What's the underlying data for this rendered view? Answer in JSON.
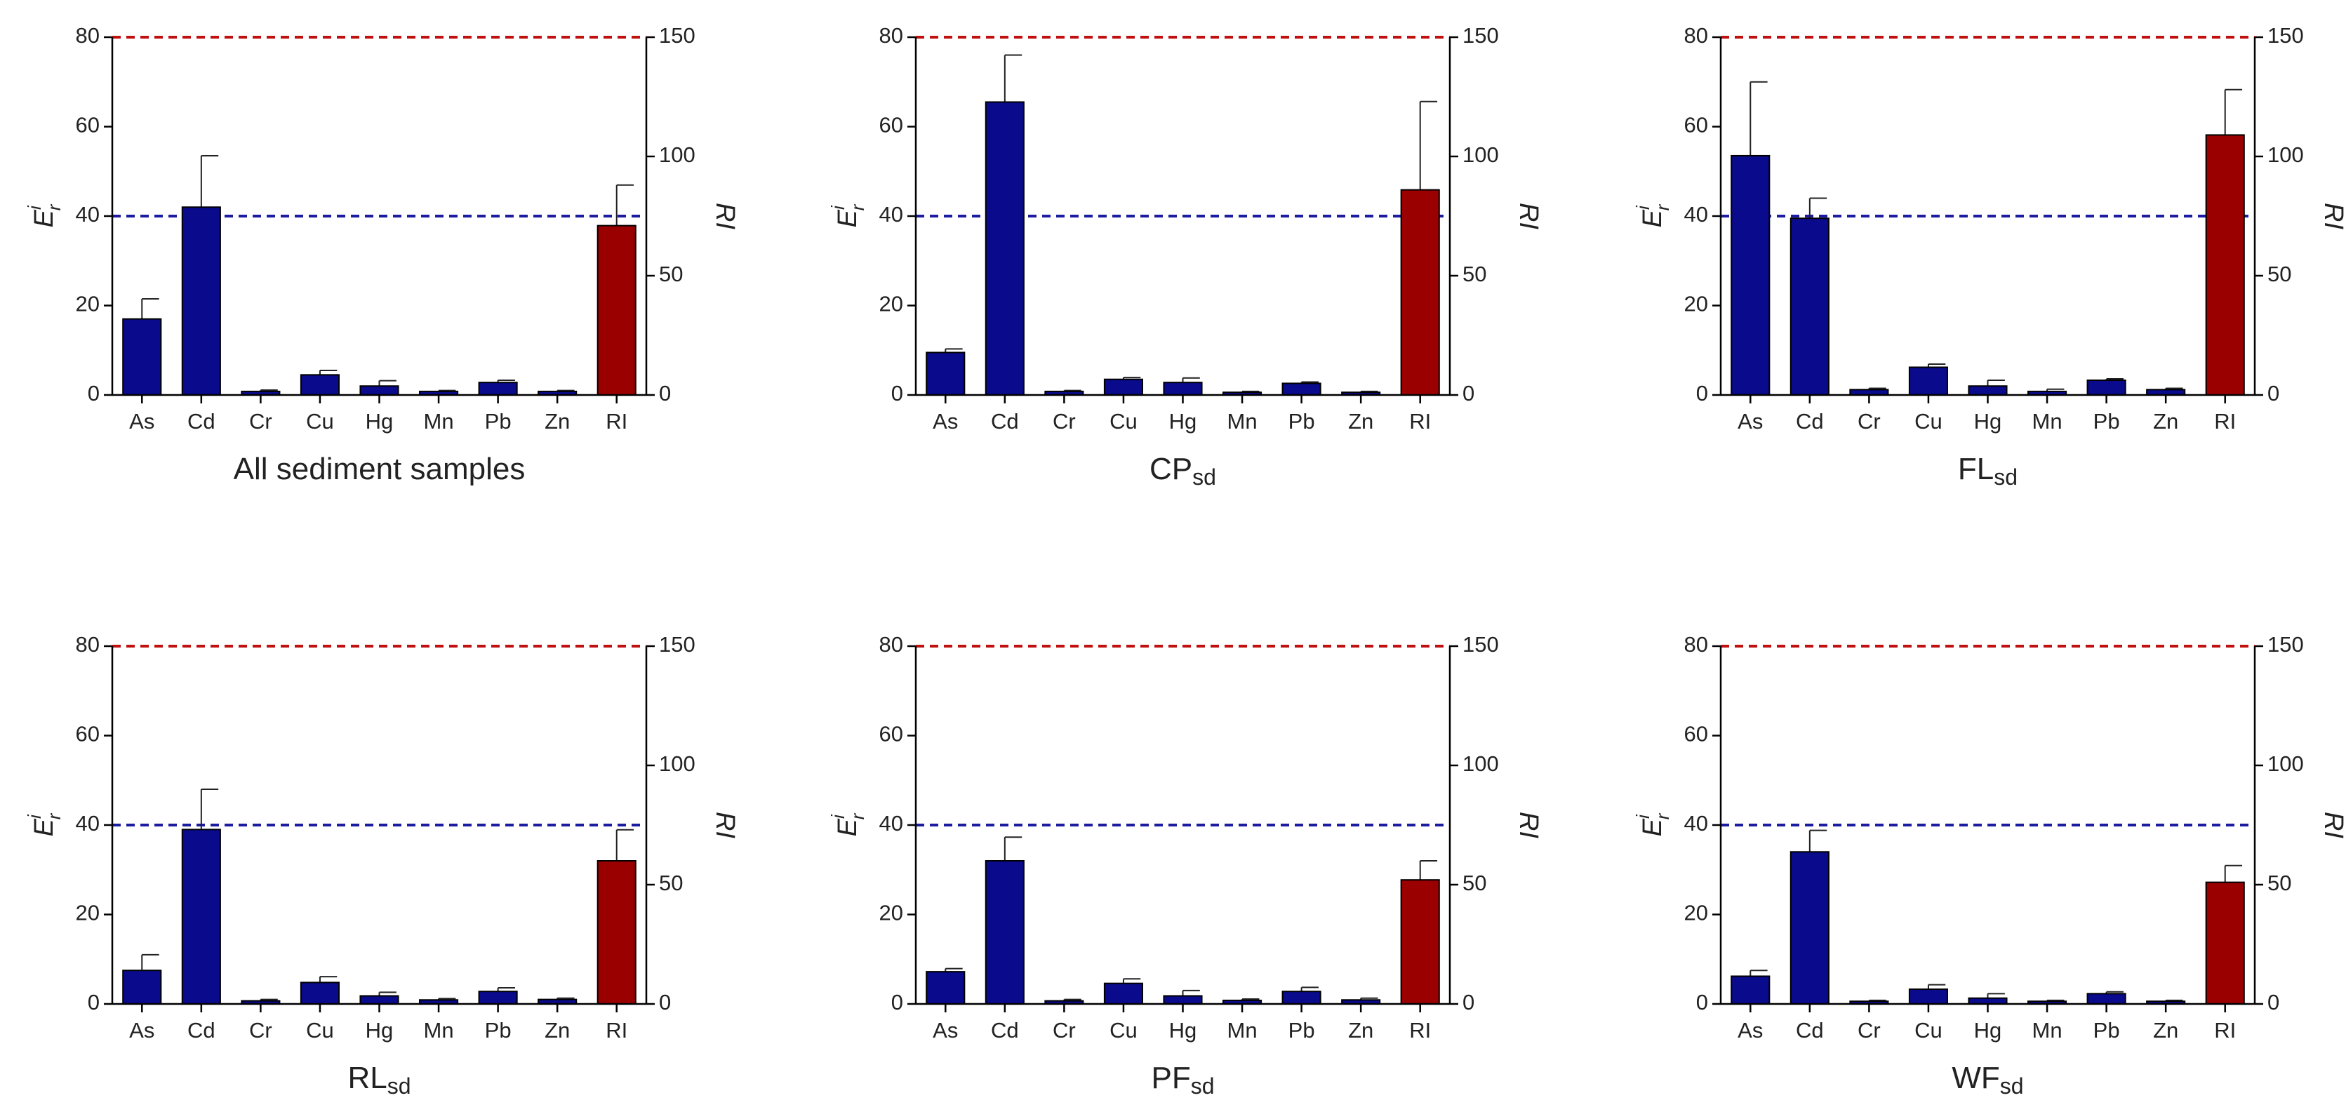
{
  "chart_data": [
    {
      "type": "bar",
      "title": "All sediment samples",
      "ylabel": {
        "base": "E",
        "sup": "i",
        "sub": "r"
      },
      "y2label": "RI",
      "categories": [
        "As",
        "Cd",
        "Cr",
        "Cu",
        "Hg",
        "Mn",
        "Pb",
        "Zn",
        "RI"
      ],
      "series": [
        {
          "color": "#0a0a8c",
          "values": [
            17,
            42,
            0.8,
            4.5,
            2,
            0.8,
            2.8,
            0.8,
            null
          ],
          "errors": [
            4.5,
            11.5,
            0.3,
            1,
            1.2,
            0.2,
            0.5,
            0.2,
            null
          ]
        },
        {
          "color": "#9b0000",
          "axis": "y2",
          "values": [
            null,
            null,
            null,
            null,
            null,
            null,
            null,
            null,
            71
          ],
          "errors": [
            null,
            null,
            null,
            null,
            null,
            null,
            null,
            null,
            17
          ]
        }
      ],
      "ylim": [
        0,
        80
      ],
      "yticks": [
        0,
        20,
        40,
        60,
        80
      ],
      "y2lim": [
        0,
        150
      ],
      "y2ticks": [
        0,
        50,
        100,
        150
      ],
      "hlines": [
        {
          "value": 40,
          "axis": "y",
          "color": "#1c1ca0"
        },
        {
          "value": 150,
          "axis": "y2",
          "color": "#c01010"
        }
      ]
    },
    {
      "type": "bar",
      "title": "CP",
      "title_sub": "sd",
      "ylabel": {
        "base": "E",
        "sup": "i",
        "sub": "r"
      },
      "y2label": "RI",
      "categories": [
        "As",
        "Cd",
        "Cr",
        "Cu",
        "Hg",
        "Mn",
        "Pb",
        "Zn",
        "RI"
      ],
      "series": [
        {
          "color": "#0a0a8c",
          "values": [
            9.5,
            65.5,
            0.8,
            3.5,
            2.8,
            0.6,
            2.6,
            0.6,
            null
          ],
          "errors": [
            0.8,
            10.5,
            0.2,
            0.4,
            1,
            0.2,
            0.3,
            0.2,
            null
          ]
        },
        {
          "color": "#9b0000",
          "axis": "y2",
          "values": [
            null,
            null,
            null,
            null,
            null,
            null,
            null,
            null,
            86
          ],
          "errors": [
            null,
            null,
            null,
            null,
            null,
            null,
            null,
            null,
            37
          ]
        }
      ],
      "ylim": [
        0,
        80
      ],
      "yticks": [
        0,
        20,
        40,
        60,
        80
      ],
      "y2lim": [
        0,
        150
      ],
      "y2ticks": [
        0,
        50,
        100,
        150
      ],
      "hlines": [
        {
          "value": 40,
          "axis": "y",
          "color": "#1c1ca0"
        },
        {
          "value": 150,
          "axis": "y2",
          "color": "#c01010"
        }
      ]
    },
    {
      "type": "bar",
      "title": "FL",
      "title_sub": "sd",
      "ylabel": {
        "base": "E",
        "sup": "i",
        "sub": "r"
      },
      "y2label": "RI",
      "categories": [
        "As",
        "Cd",
        "Cr",
        "Cu",
        "Hg",
        "Mn",
        "Pb",
        "Zn",
        "RI"
      ],
      "series": [
        {
          "color": "#0a0a8c",
          "values": [
            53.5,
            39.5,
            1.2,
            6.2,
            2,
            0.8,
            3.3,
            1.2,
            null
          ],
          "errors": [
            16.5,
            4.5,
            0.3,
            0.7,
            1.3,
            0.5,
            0.3,
            0.3,
            null
          ]
        },
        {
          "color": "#9b0000",
          "axis": "y2",
          "values": [
            null,
            null,
            null,
            null,
            null,
            null,
            null,
            null,
            109
          ],
          "errors": [
            null,
            null,
            null,
            null,
            null,
            null,
            null,
            null,
            19
          ]
        }
      ],
      "ylim": [
        0,
        80
      ],
      "yticks": [
        0,
        20,
        40,
        60,
        80
      ],
      "y2lim": [
        0,
        150
      ],
      "y2ticks": [
        0,
        50,
        100,
        150
      ],
      "hlines": [
        {
          "value": 40,
          "axis": "y",
          "color": "#1c1ca0"
        },
        {
          "value": 150,
          "axis": "y2",
          "color": "#c01010"
        }
      ]
    },
    {
      "type": "bar",
      "title": "RL",
      "title_sub": "sd",
      "ylabel": {
        "base": "E",
        "sup": "i",
        "sub": "r"
      },
      "y2label": "RI",
      "categories": [
        "As",
        "Cd",
        "Cr",
        "Cu",
        "Hg",
        "Mn",
        "Pb",
        "Zn",
        "RI"
      ],
      "series": [
        {
          "color": "#0a0a8c",
          "values": [
            7.5,
            39,
            0.7,
            4.8,
            1.8,
            0.9,
            2.8,
            1,
            null
          ],
          "errors": [
            3.5,
            9,
            0.3,
            1.3,
            0.8,
            0.3,
            0.8,
            0.3,
            null
          ]
        },
        {
          "color": "#9b0000",
          "axis": "y2",
          "values": [
            null,
            null,
            null,
            null,
            null,
            null,
            null,
            null,
            60
          ],
          "errors": [
            null,
            null,
            null,
            null,
            null,
            null,
            null,
            null,
            13
          ]
        }
      ],
      "ylim": [
        0,
        80
      ],
      "yticks": [
        0,
        20,
        40,
        60,
        80
      ],
      "y2lim": [
        0,
        150
      ],
      "y2ticks": [
        0,
        50,
        100,
        150
      ],
      "hlines": [
        {
          "value": 40,
          "axis": "y",
          "color": "#1c1ca0"
        },
        {
          "value": 150,
          "axis": "y2",
          "color": "#c01010"
        }
      ]
    },
    {
      "type": "bar",
      "title": "PF",
      "title_sub": "sd",
      "ylabel": {
        "base": "E",
        "sup": "i",
        "sub": "r"
      },
      "y2label": "RI",
      "categories": [
        "As",
        "Cd",
        "Cr",
        "Cu",
        "Hg",
        "Mn",
        "Pb",
        "Zn",
        "RI"
      ],
      "series": [
        {
          "color": "#0a0a8c",
          "values": [
            7.2,
            32,
            0.7,
            4.6,
            1.8,
            0.8,
            2.8,
            0.9,
            null
          ],
          "errors": [
            0.7,
            5.3,
            0.3,
            1,
            1.2,
            0.3,
            0.9,
            0.4,
            null
          ]
        },
        {
          "color": "#9b0000",
          "axis": "y2",
          "values": [
            null,
            null,
            null,
            null,
            null,
            null,
            null,
            null,
            52
          ],
          "errors": [
            null,
            null,
            null,
            null,
            null,
            null,
            null,
            null,
            8
          ]
        }
      ],
      "ylim": [
        0,
        80
      ],
      "yticks": [
        0,
        20,
        40,
        60,
        80
      ],
      "y2lim": [
        0,
        150
      ],
      "y2ticks": [
        0,
        50,
        100,
        150
      ],
      "hlines": [
        {
          "value": 40,
          "axis": "y",
          "color": "#1c1ca0"
        },
        {
          "value": 150,
          "axis": "y2",
          "color": "#c01010"
        }
      ]
    },
    {
      "type": "bar",
      "title": "WF",
      "title_sub": "sd",
      "ylabel": {
        "base": "E",
        "sup": "i",
        "sub": "r"
      },
      "y2label": "RI",
      "categories": [
        "As",
        "Cd",
        "Cr",
        "Cu",
        "Hg",
        "Mn",
        "Pb",
        "Zn",
        "RI"
      ],
      "series": [
        {
          "color": "#0a0a8c",
          "values": [
            6.2,
            34,
            0.6,
            3.3,
            1.3,
            0.6,
            2.3,
            0.6,
            null
          ],
          "errors": [
            1.3,
            4.8,
            0.2,
            1,
            1,
            0.2,
            0.4,
            0.2,
            null
          ]
        },
        {
          "color": "#9b0000",
          "axis": "y2",
          "values": [
            null,
            null,
            null,
            null,
            null,
            null,
            null,
            null,
            51
          ],
          "errors": [
            null,
            null,
            null,
            null,
            null,
            null,
            null,
            null,
            7
          ]
        }
      ],
      "ylim": [
        0,
        80
      ],
      "yticks": [
        0,
        20,
        40,
        60,
        80
      ],
      "y2lim": [
        0,
        150
      ],
      "y2ticks": [
        0,
        50,
        100,
        150
      ],
      "hlines": [
        {
          "value": 40,
          "axis": "y",
          "color": "#1c1ca0"
        },
        {
          "value": 150,
          "axis": "y2",
          "color": "#c01010"
        }
      ]
    }
  ]
}
